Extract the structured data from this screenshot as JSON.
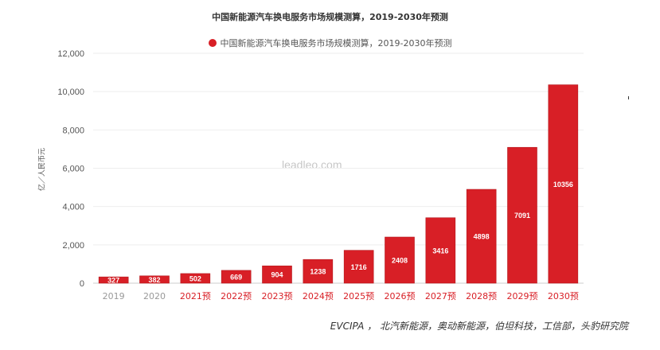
{
  "chart_data": {
    "type": "bar",
    "title": "中国新能源汽车换电服务市场规模测算，2019-2030年预测",
    "ylabel": "亿／人民币元",
    "categories": [
      "2019",
      "2020",
      "2021预",
      "2022预",
      "2023预",
      "2024预",
      "2025预",
      "2026预",
      "2027预",
      "2028预",
      "2029预",
      "2030预"
    ],
    "series": [
      {
        "name": "中国新能源汽车换电服务市场规模测算，2019-2030年预测",
        "values": [
          327,
          382,
          502,
          669,
          904,
          1238,
          1716,
          2408,
          3416,
          4898,
          7091,
          10356
        ],
        "data_labels": [
          "327",
          "382",
          "502",
          "669",
          "904",
          "1238",
          "1716",
          "2408",
          "3416",
          "4898",
          "7091",
          "10356"
        ]
      }
    ],
    "yticks": [
      "0",
      "2,000",
      "4,000",
      "6,000",
      "8,000",
      "10,000",
      "12,000"
    ],
    "ytick_values": [
      0,
      2000,
      4000,
      6000,
      8000,
      10000,
      12000
    ],
    "ylim": [
      0,
      12000
    ],
    "grid": true,
    "legend_position": "top-center",
    "colors": {
      "bar": "#d81f26",
      "bar_edge": "#b3161c",
      "actual_tick": "#999999",
      "forecast_tick": "#d81f26",
      "grid": "#eeeeee"
    }
  },
  "watermark": "leadleo.com",
  "source": "EVCIPA ， 北汽新能源，奥动新能源，伯坦科技，工信部，头豹研究院"
}
